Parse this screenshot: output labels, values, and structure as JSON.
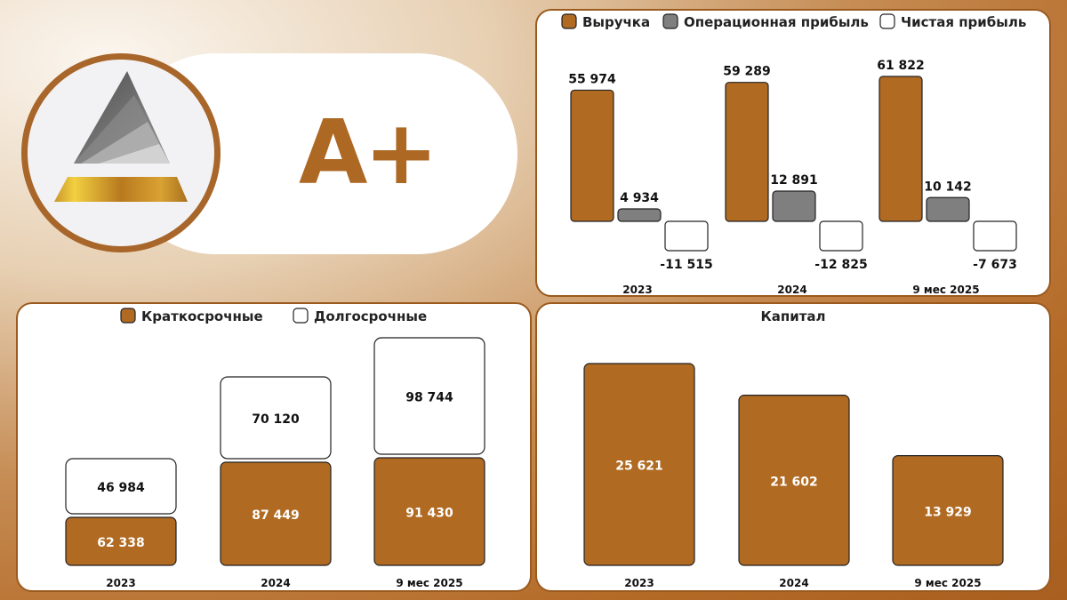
{
  "brand": {
    "rating": "A+"
  },
  "colors": {
    "brown": "#b06a22",
    "gray": "#7f7f7f",
    "white": "#ffffff",
    "stroke": "#222222"
  },
  "chart_data": [
    {
      "type": "bar",
      "categories": [
        "2023",
        "2024",
        "9 мес 2025"
      ],
      "series": [
        {
          "name": "Выручка",
          "values": [
            55974,
            59289,
            61822
          ],
          "labels": [
            "55 974",
            "59 289",
            "61 822"
          ]
        },
        {
          "name": "Операционная прибыль",
          "values": [
            4934,
            12891,
            10142
          ],
          "labels": [
            "4 934",
            "12 891",
            "10 142"
          ]
        },
        {
          "name": "Чистая прибыль",
          "values": [
            -11515,
            -12825,
            -7673
          ],
          "labels": [
            "-11 515",
            "-12 825",
            "-7 673"
          ]
        }
      ],
      "legend_position": "top"
    },
    {
      "type": "bar",
      "stacked": true,
      "categories": [
        "2023",
        "2024",
        "9 мес 2025"
      ],
      "series": [
        {
          "name": "Краткосрочные",
          "values": [
            62338,
            87449,
            91430
          ],
          "labels": [
            "62 338",
            "87 449",
            "91 430"
          ]
        },
        {
          "name": "Долгосрочные",
          "values": [
            46984,
            70120,
            98744
          ],
          "labels": [
            "46 984",
            "70 120",
            "98 744"
          ]
        }
      ],
      "legend_position": "top"
    },
    {
      "type": "bar",
      "title": "Капитал",
      "categories": [
        "2023",
        "2024",
        "9 мес 2025"
      ],
      "series": [
        {
          "values": [
            25621,
            21602,
            13929
          ],
          "labels": [
            "25 621",
            "21 602",
            "13 929"
          ]
        }
      ]
    }
  ]
}
